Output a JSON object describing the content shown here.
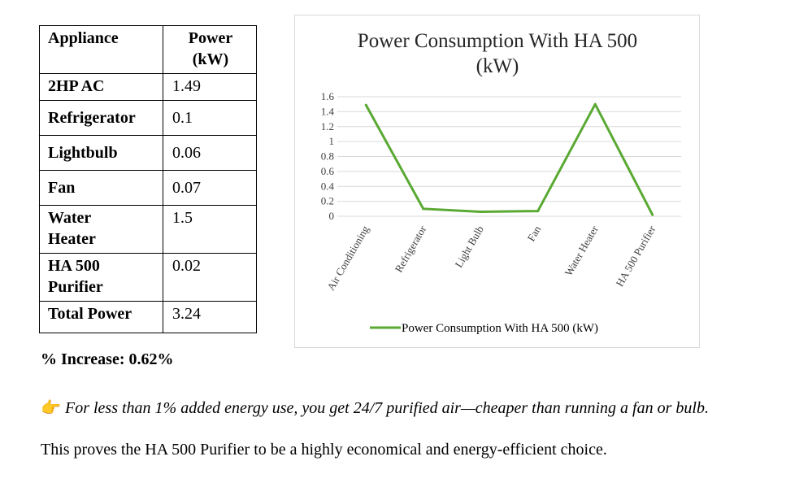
{
  "table": {
    "header_appliance": "Appliance",
    "header_power_line1": "Power",
    "header_power_line2": "(kW)",
    "rows": [
      {
        "name": "2HP AC",
        "value": "1.49"
      },
      {
        "name": "Refrigerator",
        "value": "0.1"
      },
      {
        "name": "Lightbulb",
        "value": "0.06"
      },
      {
        "name": "Fan",
        "value": "0.07"
      },
      {
        "name_line1": "Water",
        "name_line2": "Heater",
        "value": "1.5"
      },
      {
        "name_line1": "HA 500",
        "name_line2": "Purifier",
        "value": "0.02"
      },
      {
        "name": "Total Power",
        "value": "3.24"
      }
    ]
  },
  "increase_text": "% Increase: 0.62%",
  "note": {
    "icon": "pointing-hand-icon",
    "text": "For less than 1% added energy use, you get 24/7 purified air—cheaper than running a fan or bulb."
  },
  "conclusion": "This proves the HA 500 Purifier to be a highly economical and energy-efficient choice.",
  "chart_data": {
    "type": "line",
    "title_line1": "Power Consumption With HA 500",
    "title_line2": "(kW)",
    "categories": [
      "Air Conditioning",
      "Refrigerator",
      "Light Bulb",
      "Fan",
      "Water Heater",
      "HA 500 Purifier"
    ],
    "series": [
      {
        "name": "Power Consumption With HA 500 (kW)",
        "values": [
          1.49,
          0.1,
          0.06,
          0.07,
          1.5,
          0.02
        ],
        "color": "#5aa933"
      }
    ],
    "yticks": [
      "0",
      "0.2",
      "0.4",
      "0.6",
      "0.8",
      "1",
      "1.2",
      "1.4",
      "1.6"
    ],
    "ylim": [
      0,
      1.6
    ],
    "grid": true,
    "legend_position": "bottom"
  }
}
